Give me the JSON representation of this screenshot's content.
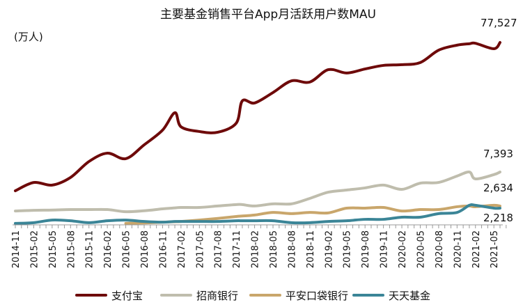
{
  "chart_data": {
    "type": "line",
    "title": "主要基金销售平台App月活跃用户数MAU",
    "ylabel": "(万人)",
    "xlabel": "",
    "x": [
      "2014-11",
      "2015-02",
      "2015-05",
      "2015-08",
      "2015-11",
      "2016-02",
      "2016-05",
      "2016-08",
      "2016-11",
      "2017-01",
      "2017-02",
      "2017-05",
      "2017-08",
      "2017-11",
      "2017-12",
      "2018-02",
      "2018-05",
      "2018-08",
      "2018-11",
      "2019-02",
      "2019-05",
      "2019-08",
      "2019-11",
      "2020-02",
      "2020-05",
      "2020-08",
      "2020-11",
      "2021-01",
      "2021-02",
      "2021-05",
      "2021-06"
    ],
    "x_tick_labels": [
      "2014-11",
      "2015-02",
      "2015-05",
      "2015-08",
      "2015-11",
      "2016-02",
      "2016-05",
      "2016-08",
      "2016-11",
      "2017-02",
      "2017-05",
      "2017-08",
      "2017-11",
      "2018-02",
      "2018-05",
      "2018-08",
      "2018-11",
      "2019-02",
      "2019-05",
      "2019-08",
      "2019-11",
      "2020-02",
      "2020-05",
      "2020-08",
      "2020-11",
      "2021-02",
      "2021-05"
    ],
    "ylim": [
      0,
      90000
    ],
    "grid": false,
    "legend_position": "bottom",
    "series": [
      {
        "name": "支付宝",
        "color": "#6e0a0a",
        "values": [
          15200,
          18700,
          17600,
          20800,
          27500,
          31000,
          28700,
          34500,
          40700,
          48000,
          42100,
          40100,
          39800,
          43600,
          53000,
          52100,
          56500,
          61400,
          60900,
          66100,
          64700,
          66400,
          67900,
          68200,
          69100,
          74300,
          76400,
          77000,
          77200,
          74900,
          77527
        ]
      },
      {
        "name": "招商银行",
        "color": "#bfbdad",
        "values": [
          6700,
          7000,
          7100,
          7300,
          7300,
          7300,
          6400,
          6800,
          7600,
          8000,
          8200,
          8200,
          8800,
          9400,
          9400,
          8800,
          9700,
          9700,
          12000,
          14600,
          15500,
          16400,
          17600,
          15800,
          18400,
          18700,
          21400,
          23100,
          20200,
          22000,
          23100
        ]
      },
      {
        "name": "平安口袋银行",
        "color": "#c9a66b",
        "values": [
          null,
          null,
          null,
          null,
          null,
          null,
          1500,
          1700,
          2000,
          2200,
          2300,
          2900,
          3600,
          4400,
          4600,
          5000,
          6100,
          5600,
          6100,
          5900,
          7900,
          7900,
          8200,
          6700,
          7300,
          7300,
          8500,
          8800,
          8500,
          9100,
          8800
        ]
      },
      {
        "name": "天天基金",
        "color": "#3b8597",
        "values": [
          1500,
          1800,
          2900,
          2600,
          1800,
          2600,
          2900,
          2300,
          2000,
          2300,
          2300,
          2300,
          2300,
          2600,
          2600,
          2600,
          2600,
          1800,
          1800,
          2300,
          2600,
          3200,
          3200,
          4100,
          4100,
          5600,
          6100,
          9100,
          9100,
          7900,
          7900
        ]
      }
    ],
    "annotations": [
      "77,527",
      "7,393",
      "2,634",
      "2,218"
    ]
  }
}
